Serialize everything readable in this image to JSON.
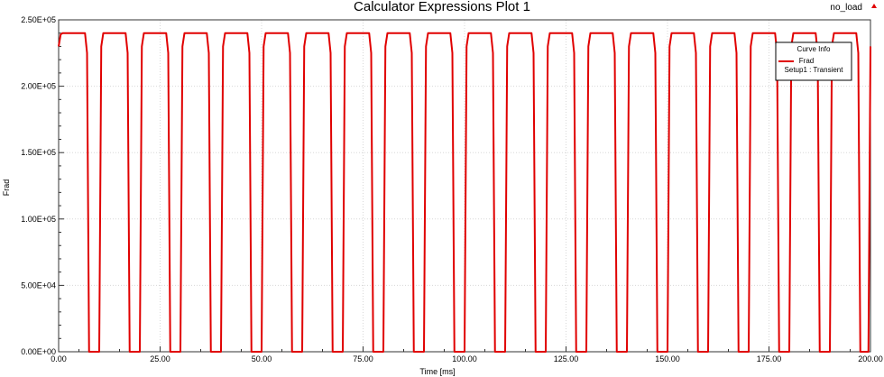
{
  "corner_label": "no_load",
  "chart_data": {
    "type": "line",
    "title": "Calculator Expressions Plot 1",
    "xlabel": "Time [ms]",
    "ylabel": "Frad",
    "xlim": [
      0,
      200
    ],
    "ylim": [
      0,
      250000
    ],
    "x_ticks": [
      0,
      25,
      50,
      75,
      100,
      125,
      150,
      175,
      200
    ],
    "x_tick_labels": [
      "0.00",
      "25.00",
      "50.00",
      "75.00",
      "100.00",
      "125.00",
      "150.00",
      "175.00",
      "200.00"
    ],
    "y_ticks": [
      0,
      50000,
      100000,
      150000,
      200000,
      250000
    ],
    "y_tick_labels": [
      "0.00E+00",
      "5.00E+04",
      "1.00E+05",
      "1.50E+05",
      "2.00E+05",
      "2.50E+05"
    ],
    "grid": true,
    "legend": {
      "title": "Curve Info",
      "placement": "top-right",
      "entries": [
        {
          "name": "Frad",
          "detail": "Setup1 : Transient",
          "color": "#e00000"
        }
      ]
    },
    "series": [
      {
        "name": "Frad",
        "color": "#e00000",
        "high_value": 240000,
        "low_value": 0,
        "x": [
          0,
          0.5,
          1.0,
          6.5,
          7.0,
          7.5,
          10.0,
          10.5,
          11.0,
          16.5,
          17.0,
          17.5,
          20.0,
          20.5,
          21.0,
          26.5,
          27.0,
          27.5,
          30.0,
          30.5,
          31.0,
          36.5,
          37.0,
          37.5,
          40.0,
          40.5,
          41.0,
          46.5,
          47.0,
          47.5,
          50.0,
          50.5,
          51.0,
          56.5,
          57.0,
          57.5,
          60.0,
          60.5,
          61.0,
          66.5,
          67.0,
          67.5,
          70.0,
          70.5,
          71.0,
          76.5,
          77.0,
          77.5,
          80.0,
          80.5,
          81.0,
          86.5,
          87.0,
          87.5,
          90.0,
          90.5,
          91.0,
          96.5,
          97.0,
          97.5,
          100.0,
          100.5,
          101.0,
          106.5,
          107.0,
          107.5,
          110.0,
          110.5,
          111.0,
          116.5,
          117.0,
          117.5,
          120.0,
          120.5,
          121.0,
          126.5,
          127.0,
          127.5,
          130.0,
          130.5,
          131.0,
          136.5,
          137.0,
          137.5,
          140.0,
          140.5,
          141.0,
          146.5,
          147.0,
          147.5,
          150.0,
          150.5,
          151.0,
          156.5,
          157.0,
          157.5,
          160.0,
          160.5,
          161.0,
          166.5,
          167.0,
          167.5,
          170.0,
          170.5,
          171.0,
          176.5,
          177.0,
          177.5,
          180.0,
          180.5,
          181.0,
          186.5,
          187.0,
          187.5,
          190.0,
          190.5,
          191.0,
          196.5,
          197.0,
          197.5,
          199.5,
          200.0
        ],
        "y": [
          230000,
          239000,
          240000,
          240000,
          225000,
          0,
          0,
          230000,
          240000,
          240000,
          225000,
          0,
          0,
          230000,
          240000,
          240000,
          225000,
          0,
          0,
          230000,
          240000,
          240000,
          225000,
          0,
          0,
          230000,
          240000,
          240000,
          225000,
          0,
          0,
          230000,
          240000,
          240000,
          225000,
          0,
          0,
          230000,
          240000,
          240000,
          225000,
          0,
          0,
          230000,
          240000,
          240000,
          225000,
          0,
          0,
          230000,
          240000,
          240000,
          225000,
          0,
          0,
          230000,
          240000,
          240000,
          225000,
          0,
          0,
          230000,
          240000,
          240000,
          225000,
          0,
          0,
          230000,
          240000,
          240000,
          225000,
          0,
          0,
          230000,
          240000,
          240000,
          225000,
          0,
          0,
          230000,
          240000,
          240000,
          225000,
          0,
          0,
          230000,
          240000,
          240000,
          225000,
          0,
          0,
          230000,
          240000,
          240000,
          225000,
          0,
          0,
          230000,
          240000,
          240000,
          225000,
          0,
          0,
          230000,
          240000,
          240000,
          225000,
          0,
          0,
          230000,
          240000,
          240000,
          225000,
          0,
          0,
          230000,
          240000,
          240000,
          225000,
          0,
          0,
          230000
        ]
      }
    ]
  }
}
